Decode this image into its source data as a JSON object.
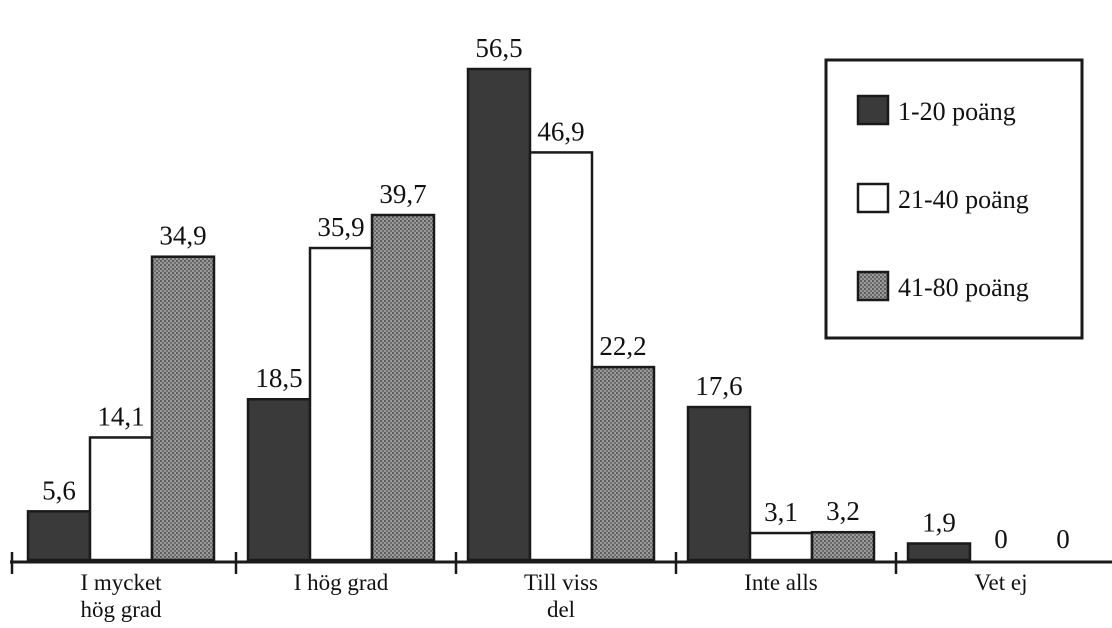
{
  "chart_data": {
    "type": "bar",
    "categories": [
      [
        "I mycket",
        "hög grad"
      ],
      [
        "I hög grad"
      ],
      [
        "Till viss",
        "del"
      ],
      [
        "Inte alls"
      ],
      [
        "Vet ej"
      ]
    ],
    "series": [
      {
        "name": "1-20 poäng",
        "values": [
          5.6,
          18.5,
          56.5,
          17.6,
          1.9
        ],
        "labels": [
          "5,6",
          "18,5",
          "56,5",
          "17,6",
          "1,9"
        ],
        "color": "#3a3a3a"
      },
      {
        "name": "21-40 poäng",
        "values": [
          14.1,
          35.9,
          46.9,
          3.1,
          0
        ],
        "labels": [
          "14,1",
          "35,9",
          "46,9",
          "3,1",
          "0"
        ],
        "color": "#ffffff"
      },
      {
        "name": "41-80 poäng",
        "values": [
          34.9,
          39.7,
          22.2,
          3.2,
          0
        ],
        "labels": [
          "34,9",
          "39,7",
          "22,2",
          "3,2",
          "0"
        ],
        "color": "#8c8c8c"
      }
    ],
    "legend": "top-right",
    "ylim": [
      0,
      56.5
    ],
    "grid": false,
    "title": "",
    "xlabel": "",
    "ylabel": ""
  }
}
